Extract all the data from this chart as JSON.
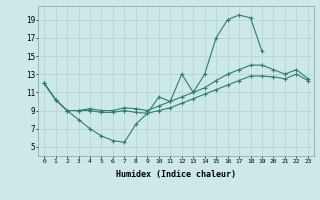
{
  "xlabel": "Humidex (Indice chaleur)",
  "bg_color": "#cce8e8",
  "line_color": "#2e7d6e",
  "grid_color": "#b8d4d4",
  "ylim": [
    4,
    20
  ],
  "xlim": [
    -0.5,
    23.5
  ],
  "yticks": [
    5,
    7,
    9,
    11,
    13,
    15,
    17,
    19
  ],
  "xticks": [
    0,
    1,
    2,
    3,
    4,
    5,
    6,
    7,
    8,
    9,
    10,
    11,
    12,
    13,
    14,
    15,
    16,
    17,
    18,
    19,
    20,
    21,
    22,
    23
  ],
  "line1_x": [
    0,
    1,
    2,
    3,
    4,
    5,
    6,
    7,
    8,
    9,
    10,
    11,
    12,
    13,
    14,
    15,
    16,
    17,
    18,
    19
  ],
  "line1_y": [
    12.0,
    10.2,
    9.0,
    8.0,
    7.0,
    6.2,
    5.7,
    5.5,
    7.5,
    8.7,
    10.5,
    10.0,
    13.0,
    11.0,
    13.0,
    17.0,
    19.0,
    19.5,
    19.2,
    15.5
  ],
  "line2_x": [
    0,
    1,
    2,
    3,
    4,
    5,
    6,
    7,
    8,
    9,
    10,
    11,
    12,
    13,
    14,
    15,
    16,
    17,
    18,
    19,
    20,
    21,
    22,
    23
  ],
  "line2_y": [
    12.0,
    10.2,
    9.0,
    9.0,
    9.2,
    9.0,
    9.0,
    9.3,
    9.2,
    9.0,
    9.5,
    10.0,
    10.5,
    11.0,
    11.5,
    12.3,
    13.0,
    13.5,
    14.0,
    14.0,
    13.5,
    13.0,
    13.5,
    12.5
  ],
  "line3_x": [
    0,
    1,
    2,
    3,
    4,
    5,
    6,
    7,
    8,
    9,
    10,
    11,
    12,
    13,
    14,
    15,
    16,
    17,
    18,
    19,
    20,
    21,
    22,
    23
  ],
  "line3_y": [
    12.0,
    10.2,
    9.0,
    9.0,
    9.0,
    8.8,
    8.8,
    9.0,
    8.8,
    8.7,
    9.0,
    9.3,
    9.8,
    10.3,
    10.8,
    11.3,
    11.8,
    12.3,
    12.8,
    12.8,
    12.7,
    12.5,
    13.0,
    12.3
  ]
}
